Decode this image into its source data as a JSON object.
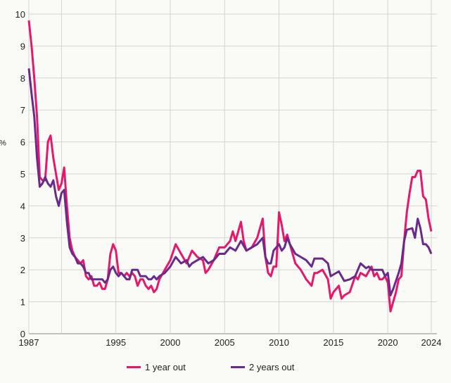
{
  "chart_data": {
    "type": "line",
    "title": "",
    "xlabel": "",
    "ylabel": "%",
    "xlim": [
      1987,
      2024
    ],
    "ylim": [
      0,
      10
    ],
    "grid": true,
    "legend_position": "bottom",
    "xticks": [
      1987,
      1995,
      2000,
      2005,
      2010,
      2015,
      2020,
      2024
    ],
    "xgrid": [
      1990,
      1995,
      2000,
      2005,
      2010,
      2015,
      2020,
      2024
    ],
    "yticks": [
      0,
      1,
      2,
      3,
      4,
      5,
      6,
      7,
      8,
      9,
      10
    ],
    "series": [
      {
        "name": "1 year out",
        "color": "#e8176a",
        "points": [
          [
            1987,
            9.8
          ],
          [
            1987.25,
            9.0
          ],
          [
            1987.5,
            8.0
          ],
          [
            1987.75,
            6.8
          ],
          [
            1988,
            4.9
          ],
          [
            1988.25,
            4.8
          ],
          [
            1988.5,
            4.8
          ],
          [
            1988.75,
            6.0
          ],
          [
            1989,
            6.2
          ],
          [
            1989.25,
            5.5
          ],
          [
            1989.5,
            5.0
          ],
          [
            1989.75,
            4.5
          ],
          [
            1990,
            4.7
          ],
          [
            1990.25,
            5.2
          ],
          [
            1990.5,
            4.0
          ],
          [
            1990.75,
            3.0
          ],
          [
            1991,
            2.6
          ],
          [
            1991.25,
            2.4
          ],
          [
            1991.5,
            2.3
          ],
          [
            1991.75,
            2.2
          ],
          [
            1992,
            2.3
          ],
          [
            1992.25,
            1.8
          ],
          [
            1992.5,
            1.7
          ],
          [
            1992.75,
            1.8
          ],
          [
            1993,
            1.5
          ],
          [
            1993.25,
            1.5
          ],
          [
            1993.5,
            1.6
          ],
          [
            1993.75,
            1.4
          ],
          [
            1994,
            1.4
          ],
          [
            1994.25,
            1.7
          ],
          [
            1994.5,
            2.5
          ],
          [
            1994.75,
            2.8
          ],
          [
            1995,
            2.6
          ],
          [
            1995.25,
            1.9
          ],
          [
            1995.5,
            1.9
          ],
          [
            1995.75,
            1.8
          ],
          [
            1996,
            1.9
          ],
          [
            1996.25,
            1.8
          ],
          [
            1996.5,
            1.9
          ],
          [
            1996.75,
            1.8
          ],
          [
            1997,
            1.5
          ],
          [
            1997.25,
            1.7
          ],
          [
            1997.5,
            1.7
          ],
          [
            1997.75,
            1.5
          ],
          [
            1998,
            1.4
          ],
          [
            1998.25,
            1.5
          ],
          [
            1998.5,
            1.3
          ],
          [
            1998.75,
            1.4
          ],
          [
            1999,
            1.7
          ],
          [
            1999.5,
            2.0
          ],
          [
            2000,
            2.3
          ],
          [
            2000.5,
            2.8
          ],
          [
            2001,
            2.5
          ],
          [
            2001.5,
            2.2
          ],
          [
            2002,
            2.6
          ],
          [
            2002.5,
            2.4
          ],
          [
            2003,
            2.3
          ],
          [
            2003.25,
            1.9
          ],
          [
            2003.5,
            2.0
          ],
          [
            2004,
            2.3
          ],
          [
            2004.5,
            2.7
          ],
          [
            2005,
            2.7
          ],
          [
            2005.5,
            2.9
          ],
          [
            2005.75,
            3.2
          ],
          [
            2006,
            2.9
          ],
          [
            2006.5,
            3.5
          ],
          [
            2006.75,
            2.9
          ],
          [
            2007,
            2.6
          ],
          [
            2007.5,
            2.7
          ],
          [
            2008,
            3.0
          ],
          [
            2008.5,
            3.6
          ],
          [
            2008.75,
            2.4
          ],
          [
            2009,
            1.9
          ],
          [
            2009.25,
            1.8
          ],
          [
            2009.5,
            2.1
          ],
          [
            2009.75,
            2.1
          ],
          [
            2010,
            3.8
          ],
          [
            2010.25,
            3.4
          ],
          [
            2010.5,
            2.9
          ],
          [
            2010.75,
            3.1
          ],
          [
            2011,
            2.8
          ],
          [
            2011.5,
            2.2
          ],
          [
            2012,
            2.0
          ],
          [
            2012.5,
            1.7
          ],
          [
            2013,
            1.5
          ],
          [
            2013.25,
            1.9
          ],
          [
            2013.5,
            1.9
          ],
          [
            2014,
            2.0
          ],
          [
            2014.5,
            1.7
          ],
          [
            2014.75,
            1.1
          ],
          [
            2015,
            1.3
          ],
          [
            2015.5,
            1.5
          ],
          [
            2015.75,
            1.1
          ],
          [
            2016,
            1.2
          ],
          [
            2016.5,
            1.3
          ],
          [
            2017,
            1.8
          ],
          [
            2017.25,
            1.7
          ],
          [
            2017.5,
            1.9
          ],
          [
            2018,
            1.8
          ],
          [
            2018.5,
            2.1
          ],
          [
            2018.75,
            1.8
          ],
          [
            2019,
            1.9
          ],
          [
            2019.25,
            1.7
          ],
          [
            2019.5,
            1.7
          ],
          [
            2019.75,
            1.8
          ],
          [
            2020,
            1.6
          ],
          [
            2020.25,
            0.7
          ],
          [
            2020.5,
            1.0
          ],
          [
            2020.75,
            1.3
          ],
          [
            2021,
            1.7
          ],
          [
            2021.25,
            1.8
          ],
          [
            2021.5,
            2.9
          ],
          [
            2021.75,
            3.8
          ],
          [
            2022,
            4.4
          ],
          [
            2022.25,
            4.9
          ],
          [
            2022.5,
            4.9
          ],
          [
            2022.75,
            5.1
          ],
          [
            2023,
            5.1
          ],
          [
            2023.25,
            4.3
          ],
          [
            2023.5,
            4.2
          ],
          [
            2023.75,
            3.6
          ],
          [
            2024,
            3.2
          ]
        ]
      },
      {
        "name": "2 years out",
        "color": "#6a2a8c",
        "points": [
          [
            1987,
            8.3
          ],
          [
            1987.25,
            7.5
          ],
          [
            1987.5,
            6.8
          ],
          [
            1987.75,
            5.5
          ],
          [
            1988,
            4.6
          ],
          [
            1988.25,
            4.7
          ],
          [
            1988.5,
            4.9
          ],
          [
            1988.75,
            4.7
          ],
          [
            1989,
            4.6
          ],
          [
            1989.25,
            4.8
          ],
          [
            1989.5,
            4.3
          ],
          [
            1989.75,
            4.0
          ],
          [
            1990,
            4.4
          ],
          [
            1990.25,
            4.5
          ],
          [
            1990.5,
            3.5
          ],
          [
            1990.75,
            2.7
          ],
          [
            1991,
            2.5
          ],
          [
            1991.25,
            2.4
          ],
          [
            1991.5,
            2.2
          ],
          [
            1991.75,
            2.2
          ],
          [
            1992,
            2.1
          ],
          [
            1992.25,
            1.9
          ],
          [
            1992.5,
            1.9
          ],
          [
            1992.75,
            1.7
          ],
          [
            1993,
            1.7
          ],
          [
            1993.5,
            1.7
          ],
          [
            1993.75,
            1.7
          ],
          [
            1994,
            1.6
          ],
          [
            1994.25,
            1.7
          ],
          [
            1994.5,
            2.0
          ],
          [
            1994.75,
            2.1
          ],
          [
            1995,
            1.9
          ],
          [
            1995.25,
            1.8
          ],
          [
            1995.5,
            1.9
          ],
          [
            1995.75,
            1.8
          ],
          [
            1996,
            1.7
          ],
          [
            1996.25,
            1.7
          ],
          [
            1996.5,
            2.0
          ],
          [
            1996.75,
            2.0
          ],
          [
            1997,
            2.0
          ],
          [
            1997.25,
            1.8
          ],
          [
            1997.75,
            1.8
          ],
          [
            1998,
            1.7
          ],
          [
            1998.25,
            1.7
          ],
          [
            1998.5,
            1.8
          ],
          [
            1998.75,
            1.7
          ],
          [
            1999,
            1.8
          ],
          [
            1999.5,
            1.9
          ],
          [
            2000,
            2.1
          ],
          [
            2000.5,
            2.4
          ],
          [
            2001,
            2.2
          ],
          [
            2001.5,
            2.3
          ],
          [
            2001.75,
            2.1
          ],
          [
            2002,
            2.2
          ],
          [
            2002.5,
            2.3
          ],
          [
            2003,
            2.4
          ],
          [
            2003.5,
            2.2
          ],
          [
            2004,
            2.3
          ],
          [
            2004.5,
            2.5
          ],
          [
            2005,
            2.5
          ],
          [
            2005.5,
            2.7
          ],
          [
            2006,
            2.6
          ],
          [
            2006.5,
            2.9
          ],
          [
            2007,
            2.6
          ],
          [
            2007.5,
            2.7
          ],
          [
            2008,
            2.8
          ],
          [
            2008.5,
            3.0
          ],
          [
            2008.75,
            2.4
          ],
          [
            2009,
            2.2
          ],
          [
            2009.25,
            2.2
          ],
          [
            2009.5,
            2.6
          ],
          [
            2010,
            2.8
          ],
          [
            2010.25,
            2.6
          ],
          [
            2010.5,
            2.7
          ],
          [
            2010.75,
            3.0
          ],
          [
            2011,
            2.8
          ],
          [
            2011.5,
            2.5
          ],
          [
            2012,
            2.4
          ],
          [
            2012.5,
            2.3
          ],
          [
            2013,
            2.1
          ],
          [
            2013.25,
            2.35
          ],
          [
            2013.75,
            2.35
          ],
          [
            2014,
            2.35
          ],
          [
            2014.5,
            2.2
          ],
          [
            2014.75,
            1.8
          ],
          [
            2015,
            1.85
          ],
          [
            2015.5,
            1.95
          ],
          [
            2016,
            1.65
          ],
          [
            2016.5,
            1.7
          ],
          [
            2017,
            1.8
          ],
          [
            2017.5,
            2.2
          ],
          [
            2018,
            2.05
          ],
          [
            2018.25,
            2.1
          ],
          [
            2018.5,
            2.0
          ],
          [
            2019,
            2.0
          ],
          [
            2019.5,
            2.0
          ],
          [
            2019.75,
            1.8
          ],
          [
            2020,
            1.9
          ],
          [
            2020.25,
            1.2
          ],
          [
            2020.5,
            1.4
          ],
          [
            2021,
            1.9
          ],
          [
            2021.25,
            2.2
          ],
          [
            2021.5,
            2.9
          ],
          [
            2021.75,
            3.25
          ],
          [
            2022.25,
            3.3
          ],
          [
            2022.5,
            3.0
          ],
          [
            2022.75,
            3.6
          ],
          [
            2023,
            3.3
          ],
          [
            2023.25,
            2.8
          ],
          [
            2023.5,
            2.8
          ],
          [
            2023.75,
            2.7
          ],
          [
            2024,
            2.5
          ]
        ]
      }
    ]
  }
}
